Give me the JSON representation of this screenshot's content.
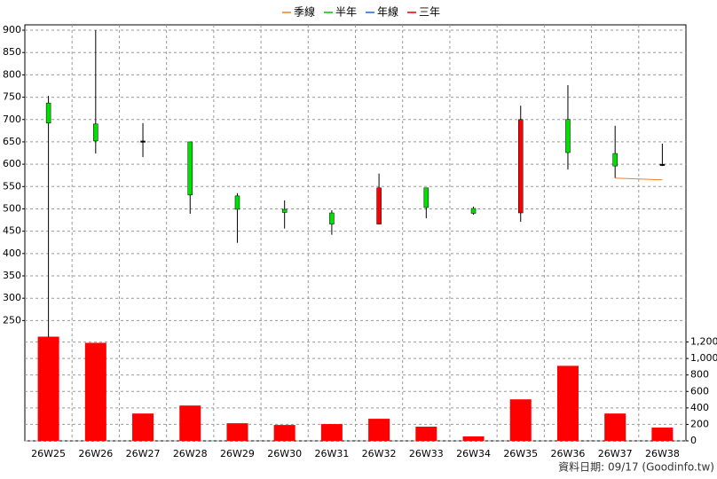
{
  "chart_data": {
    "type": "candlestick",
    "categories": [
      "26W25",
      "26W26",
      "26W27",
      "26W28",
      "26W29",
      "26W30",
      "26W31",
      "26W32",
      "26W33",
      "26W34",
      "26W35",
      "26W36",
      "26W37",
      "26W38"
    ],
    "open": [
      737,
      690,
      652,
      650,
      529,
      499,
      491,
      466,
      547,
      501,
      491,
      700,
      624,
      600
    ],
    "high": [
      753,
      900,
      692,
      650,
      535,
      519,
      497,
      579,
      547,
      505,
      731,
      777,
      686,
      646
    ],
    "low": [
      213,
      624,
      616,
      489,
      424,
      456,
      442,
      466,
      479,
      487,
      471,
      588,
      569,
      596
    ],
    "close": [
      692,
      652,
      651,
      531,
      499,
      492,
      466,
      547,
      503,
      490,
      700,
      626,
      596,
      597
    ],
    "up_color": "#ff0000",
    "down_color": "#00e000",
    "ylim": [
      213,
      912
    ],
    "yticks": [
      250,
      300,
      350,
      400,
      450,
      500,
      550,
      600,
      650,
      700,
      750,
      800,
      850,
      900
    ],
    "volume": {
      "values": [
        1265,
        1190,
        332,
        429,
        214,
        193,
        204,
        268,
        172,
        54,
        504,
        911,
        332,
        161
      ],
      "color": "#ff0000",
      "y2lim": [
        0,
        1260
      ],
      "y2ticks": [
        0,
        200,
        400,
        600,
        800,
        {
          "value": 1000,
          "label": "1,000"
        },
        {
          "value": 1200,
          "label": "1,200"
        }
      ]
    },
    "series": [
      {
        "name": "季線",
        "color": "#e8822a",
        "values": [
          null,
          null,
          null,
          null,
          null,
          null,
          null,
          null,
          null,
          null,
          null,
          null,
          569,
          565
        ]
      },
      {
        "name": "半年",
        "color": "#00c000",
        "values": [
          null,
          null,
          null,
          null,
          null,
          null,
          null,
          null,
          null,
          null,
          null,
          null,
          null,
          null
        ]
      },
      {
        "name": "年線",
        "color": "#2060e0",
        "values": [
          null,
          null,
          null,
          null,
          null,
          null,
          null,
          null,
          null,
          null,
          null,
          null,
          null,
          null
        ]
      },
      {
        "name": "三年",
        "color": "#e00000",
        "values": [
          null,
          null,
          null,
          null,
          null,
          null,
          null,
          null,
          null,
          null,
          null,
          null,
          null,
          null
        ]
      }
    ],
    "grid": true,
    "legend": "top",
    "footer": "資料日期: 09/17  (Goodinfo.tw)"
  }
}
